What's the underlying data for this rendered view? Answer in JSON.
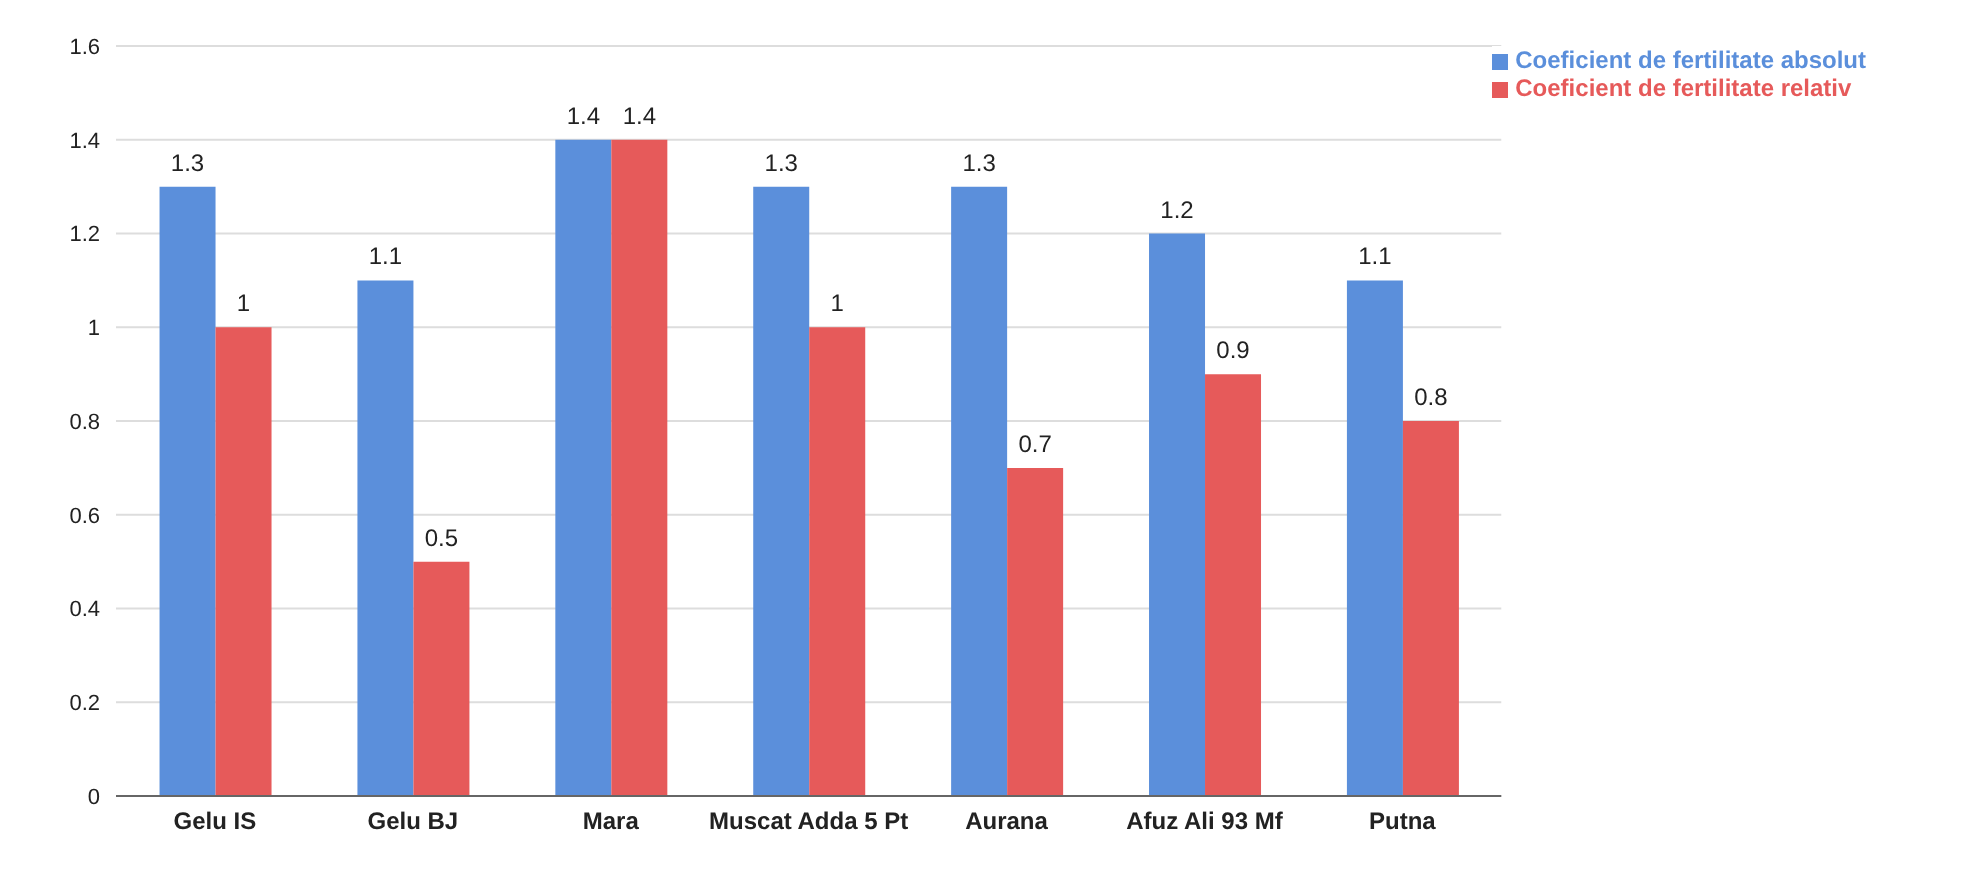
{
  "chart_data": {
    "type": "bar",
    "categories": [
      "Gelu IS",
      "Gelu BJ",
      "Mara",
      "Muscat Adda 5 Pt",
      "Aurana",
      "Afuz Ali 93 Mf",
      "Putna"
    ],
    "series": [
      {
        "name": "Coeficient de fertilitate absolut",
        "color": "#5b8fdb",
        "values": [
          1.3,
          1.1,
          1.4,
          1.3,
          1.3,
          1.2,
          1.1
        ]
      },
      {
        "name": "Coeficient de fertilitate relativ",
        "color": "#e65a5a",
        "values": [
          1,
          0.5,
          1.4,
          1,
          0.7,
          0.9,
          0.8
        ]
      }
    ],
    "ylim": [
      0,
      1.6
    ],
    "yticks": [
      0,
      0.2,
      0.4,
      0.6,
      0.8,
      1,
      1.2,
      1.4,
      1.6
    ],
    "grid": "y",
    "legend": "top right",
    "data_labels": true
  }
}
